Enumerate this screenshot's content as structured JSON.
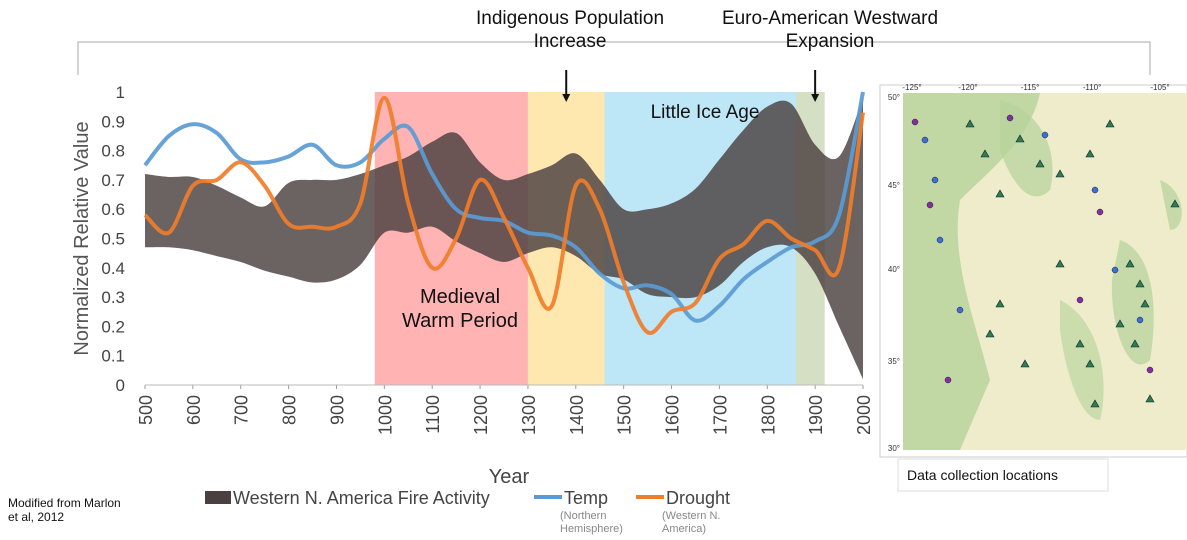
{
  "chart_data": {
    "type": "line",
    "y_label": "Normalized Relative Value",
    "x_label": "Year",
    "source": "Modified from Marlon et al, 2012",
    "xlim": [
      500,
      2000
    ],
    "xticks": [
      500,
      600,
      700,
      800,
      900,
      1000,
      1100,
      1200,
      1300,
      1400,
      1500,
      1600,
      1700,
      1800,
      1900,
      2000
    ],
    "ylim": [
      0,
      1
    ],
    "yticks": [
      0,
      0.1,
      0.2,
      0.3,
      0.4,
      0.5,
      0.6,
      0.7,
      0.8,
      0.9,
      1
    ],
    "x": [
      500,
      550,
      600,
      650,
      700,
      750,
      800,
      850,
      900,
      950,
      1000,
      1050,
      1100,
      1150,
      1200,
      1250,
      1300,
      1350,
      1400,
      1450,
      1500,
      1550,
      1600,
      1650,
      1700,
      1750,
      1800,
      1850,
      1900,
      1950,
      2000
    ],
    "periods": [
      {
        "label": "Medieval Warm Period",
        "start": 980,
        "end": 1300,
        "color": "#ffb3b3"
      },
      {
        "start": 1300,
        "end": 1460,
        "color": "#ffe8b0"
      },
      {
        "label": "Little Ice Age",
        "start": 1460,
        "end": 1860,
        "color": "#bde6f6"
      },
      {
        "start": 1860,
        "end": 1920,
        "color": "#d5dfc4"
      }
    ],
    "annotations": [
      {
        "text": "Indigenous Population Increase",
        "x": 1380
      },
      {
        "text": "Euro-American Westward Expansion",
        "x": 1900
      }
    ],
    "series": [
      {
        "name": "Western N. America Fire Activity",
        "color": "#4a4040",
        "lower": [
          0.47,
          0.47,
          0.46,
          0.44,
          0.42,
          0.39,
          0.37,
          0.35,
          0.36,
          0.41,
          0.52,
          0.52,
          0.54,
          0.49,
          0.45,
          0.42,
          0.45,
          0.47,
          0.44,
          0.38,
          0.36,
          0.31,
          0.3,
          0.3,
          0.34,
          0.42,
          0.47,
          0.47,
          0.38,
          0.2,
          0.02
        ],
        "upper": [
          0.72,
          0.71,
          0.71,
          0.68,
          0.64,
          0.61,
          0.69,
          0.7,
          0.7,
          0.72,
          0.75,
          0.78,
          0.83,
          0.86,
          0.76,
          0.7,
          0.72,
          0.75,
          0.79,
          0.7,
          0.6,
          0.6,
          0.62,
          0.67,
          0.77,
          0.87,
          0.95,
          0.96,
          0.82,
          0.78,
          0.98
        ]
      },
      {
        "name": "Temp",
        "note": "(Northern Hemisphere)",
        "color": "#5b9bd5",
        "values": [
          0.75,
          0.85,
          0.89,
          0.86,
          0.77,
          0.76,
          0.78,
          0.82,
          0.75,
          0.76,
          0.84,
          0.88,
          0.72,
          0.6,
          0.57,
          0.56,
          0.52,
          0.51,
          0.47,
          0.38,
          0.33,
          0.34,
          0.31,
          0.22,
          0.27,
          0.36,
          0.42,
          0.47,
          0.49,
          0.58,
          1.0
        ]
      },
      {
        "name": "Drought",
        "note": "(Western N. America)",
        "color": "#f07d2a",
        "values": [
          0.58,
          0.52,
          0.68,
          0.7,
          0.76,
          0.68,
          0.55,
          0.54,
          0.54,
          0.62,
          0.98,
          0.62,
          0.4,
          0.5,
          0.7,
          0.57,
          0.4,
          0.27,
          0.68,
          0.6,
          0.35,
          0.18,
          0.25,
          0.28,
          0.43,
          0.48,
          0.56,
          0.5,
          0.46,
          0.4,
          0.93
        ]
      }
    ]
  },
  "map": {
    "caption": "Data collection locations",
    "lon_labels": [
      "-125°",
      "-120°",
      "-115°",
      "-110°",
      "-105°"
    ],
    "lat_labels": [
      "50°",
      "45°",
      "40°",
      "35°",
      "30°"
    ]
  }
}
